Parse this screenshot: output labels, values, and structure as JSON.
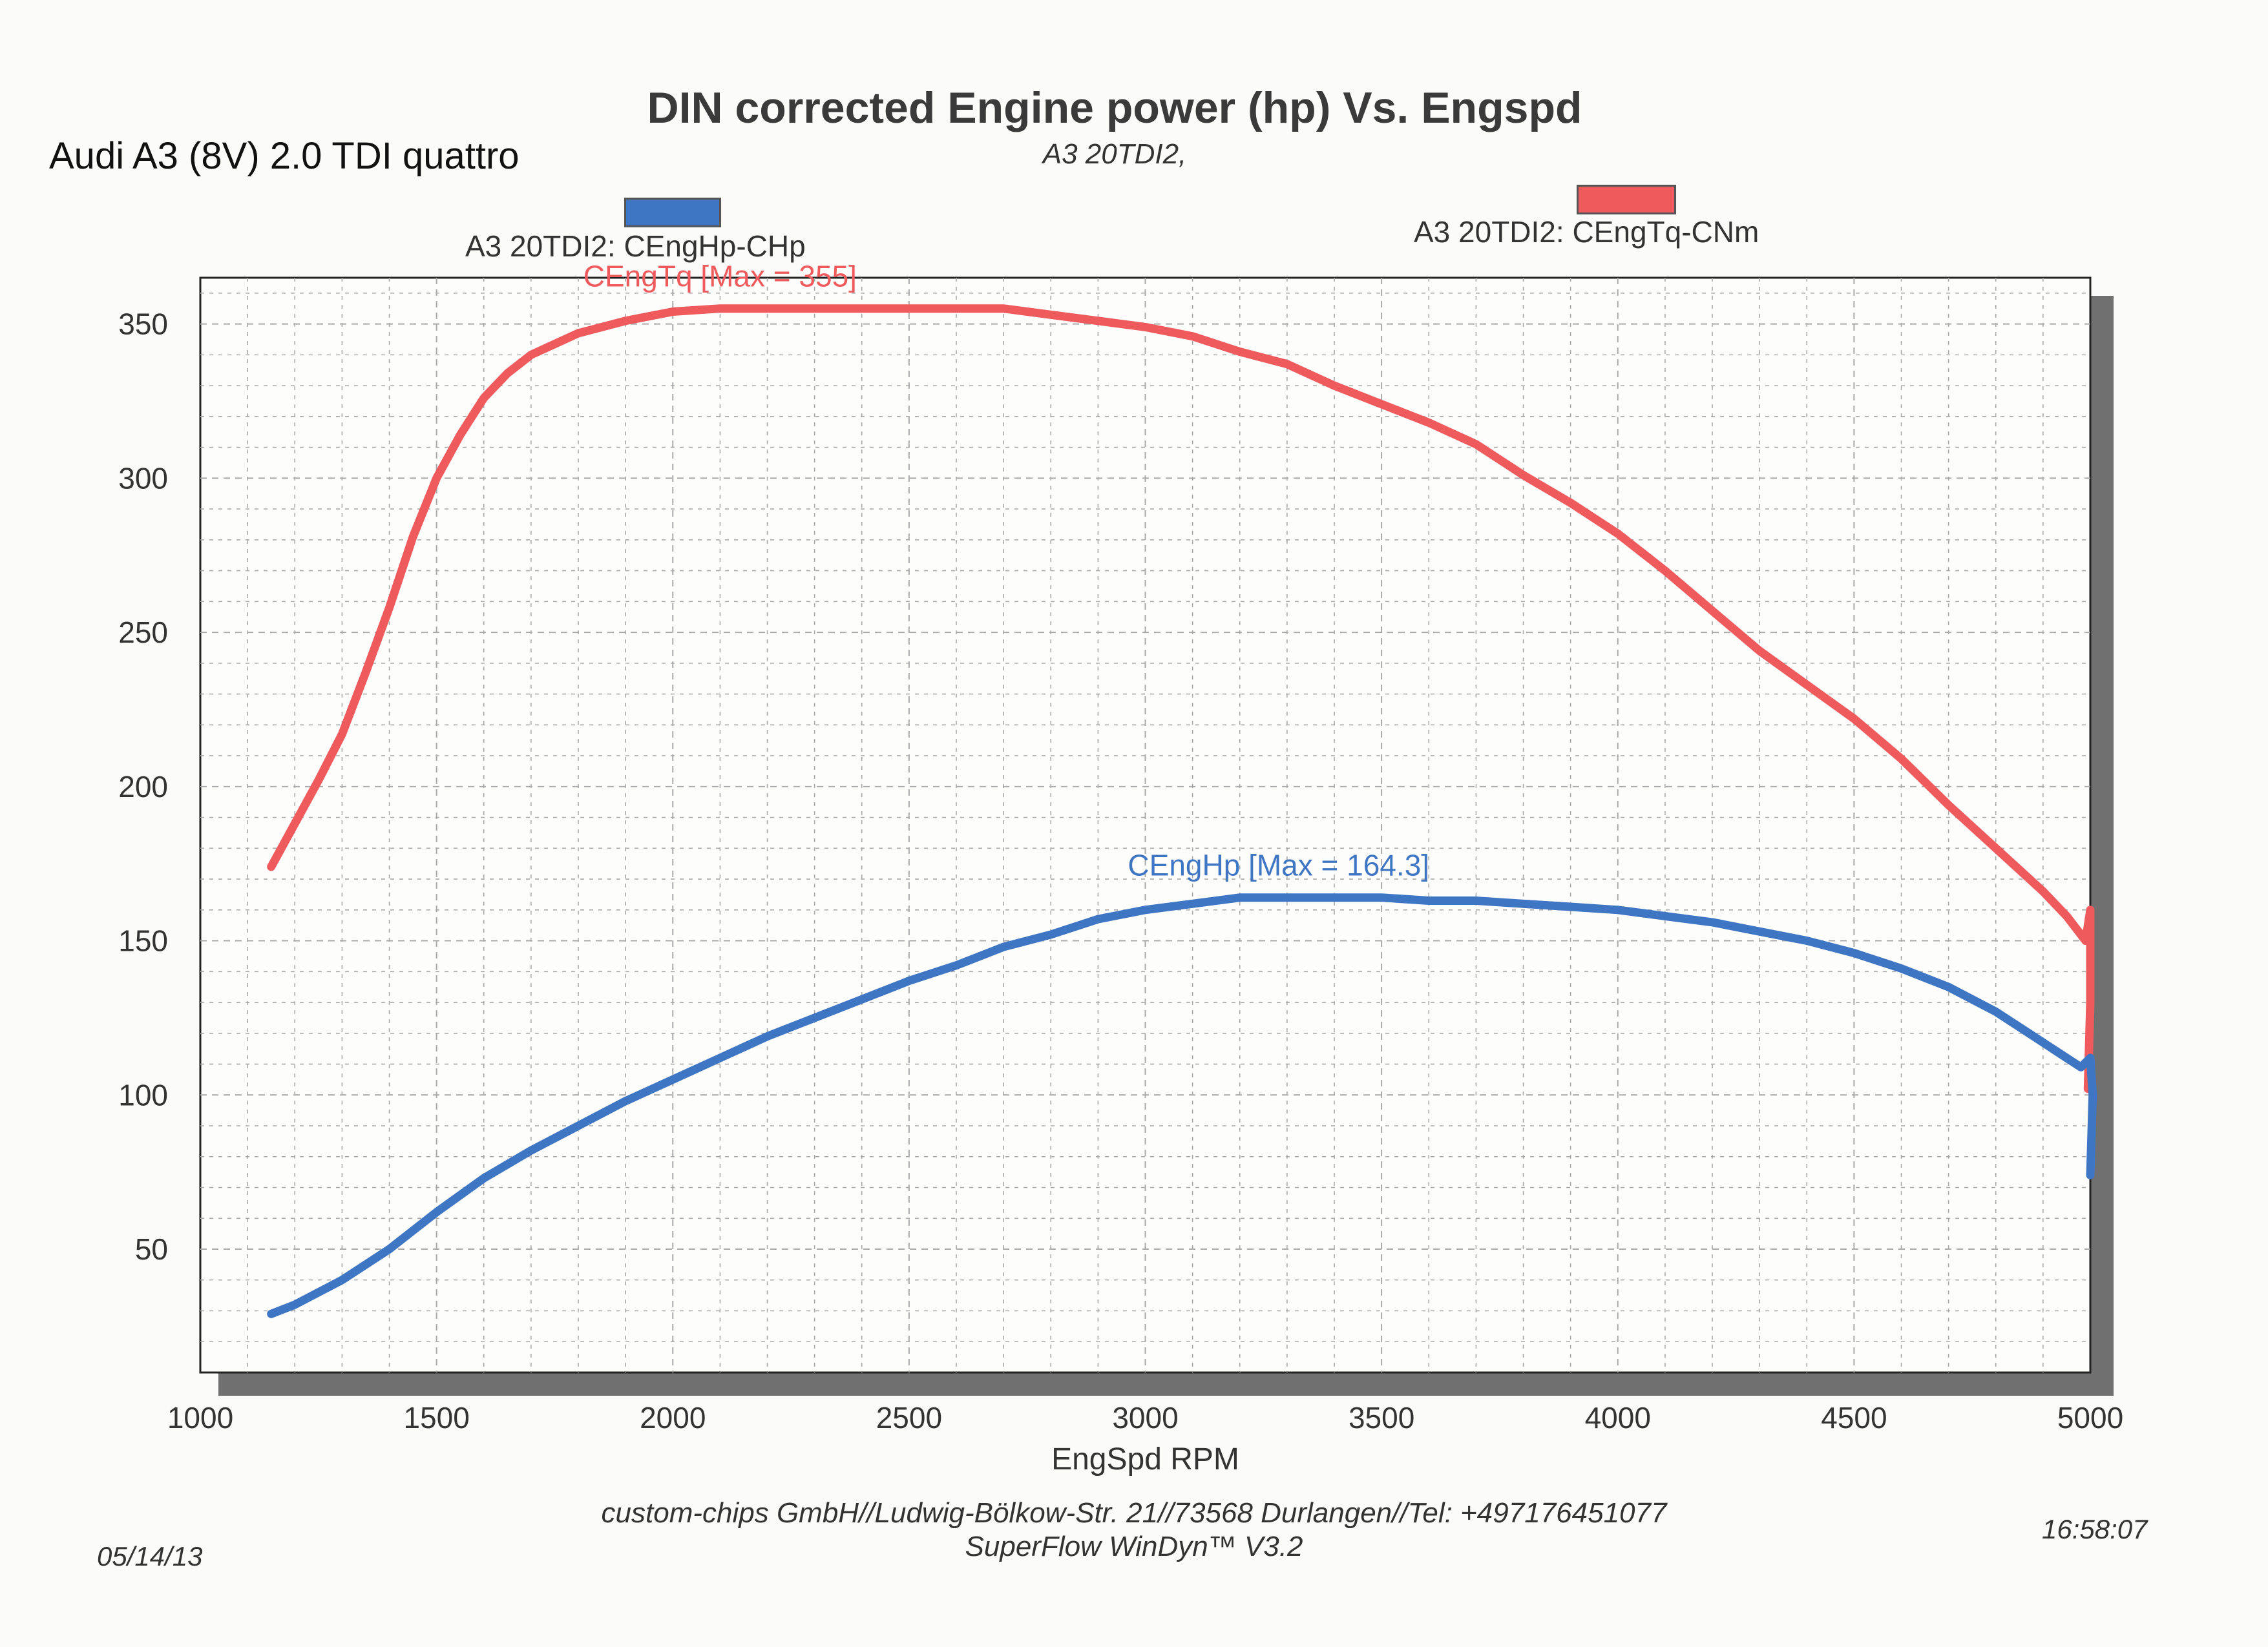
{
  "header": {
    "vehicle": "Audi A3 (8V) 2.0 TDI  quattro",
    "title": "DIN corrected Engine power (hp) Vs. Engspd",
    "subtitle": "A3 20TDI2,"
  },
  "legend": {
    "hp_label": "A3 20TDI2: CEngHp-CHp",
    "tq_label": "A3 20TDI2: CEngTq-CNm"
  },
  "footer": {
    "company": "custom-chips GmbH//Ludwig-Bölkow-Str. 21//73568 Durlangen//Tel: +497176451077",
    "software": "SuperFlow WinDyn™ V3.2",
    "date": "05/14/13",
    "time": "16:58:07"
  },
  "colors": {
    "hp": "#3f76c4",
    "tq": "#ef5a5c",
    "grid": "#a9a9a9",
    "frame": "#222222",
    "shadow": "#707070"
  },
  "chart_data": {
    "type": "line",
    "title": "DIN corrected Engine power (hp) Vs. Engspd",
    "subtitle": "A3 20TDI2,",
    "xlabel": "EngSpd RPM",
    "ylabel": "",
    "xlim": [
      1000,
      5000
    ],
    "ylim": [
      10,
      365
    ],
    "xticks": [
      1000,
      1500,
      2000,
      2500,
      3000,
      3500,
      4000,
      4500,
      5000
    ],
    "yticks": [
      50,
      100,
      150,
      200,
      250,
      300,
      350
    ],
    "grid": true,
    "legend_position": "top",
    "series": [
      {
        "name": "A3 20TDI2: CEngTq-CNm",
        "annotation": "CEngTq [Max = 355]",
        "color": "#ef5a5c",
        "x": [
          1150,
          1200,
          1250,
          1300,
          1350,
          1400,
          1450,
          1500,
          1550,
          1600,
          1650,
          1700,
          1800,
          1900,
          2000,
          2100,
          2200,
          2300,
          2400,
          2500,
          2600,
          2700,
          2800,
          2900,
          3000,
          3100,
          3200,
          3300,
          3400,
          3500,
          3600,
          3700,
          3800,
          3900,
          4000,
          4100,
          4200,
          4300,
          4400,
          4500,
          4600,
          4700,
          4800,
          4900,
          4950,
          4980,
          4990,
          5000,
          5000,
          4995
        ],
        "y": [
          174,
          188,
          202,
          217,
          237,
          258,
          281,
          300,
          314,
          326,
          334,
          340,
          347,
          351,
          354,
          355,
          355,
          355,
          355,
          355,
          355,
          355,
          353,
          351,
          349,
          346,
          341,
          337,
          330,
          324,
          318,
          311,
          301,
          292,
          282,
          270,
          257,
          244,
          233,
          222,
          209,
          194,
          180,
          166,
          158,
          152,
          150,
          160,
          130,
          102
        ]
      },
      {
        "name": "A3 20TDI2: CEngHp-CHp",
        "annotation": "CEngHp [Max = 164.3]",
        "color": "#3f76c4",
        "x": [
          1150,
          1200,
          1300,
          1400,
          1500,
          1600,
          1700,
          1800,
          1900,
          2000,
          2100,
          2200,
          2300,
          2400,
          2500,
          2600,
          2700,
          2800,
          2900,
          3000,
          3100,
          3200,
          3300,
          3400,
          3500,
          3600,
          3700,
          3800,
          3900,
          4000,
          4100,
          4200,
          4300,
          4400,
          4500,
          4600,
          4700,
          4800,
          4850,
          4900,
          4950,
          4980,
          5000,
          5005,
          5000
        ],
        "y": [
          29,
          32,
          40,
          50,
          62,
          73,
          82,
          90,
          98,
          105,
          112,
          119,
          125,
          131,
          137,
          142,
          148,
          152,
          157,
          160,
          162,
          164,
          164,
          164,
          164,
          163,
          163,
          162,
          161,
          160,
          158,
          156,
          153,
          150,
          146,
          141,
          135,
          127,
          122,
          117,
          112,
          109,
          112,
          100,
          74
        ]
      }
    ]
  }
}
